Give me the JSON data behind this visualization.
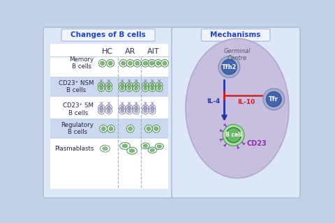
{
  "bg_color": "#c2d0e8",
  "left_panel_bg": "#dce8f8",
  "right_panel_bg": "#dce8f8",
  "left_title": "Changes of B cells",
  "right_title": "Mechanisms",
  "title_color": "#2244bb",
  "title_bg": "#f0f4ff",
  "col_headers": [
    "HC",
    "AR",
    "AIT"
  ],
  "row_labels": [
    "Memory\nB cells",
    "CD23⁺ NSM\nB cells",
    "CD23⁺ SM\nB cells",
    "Regulatory\nB cells",
    "Plasmablasts"
  ],
  "row_shading": [
    false,
    true,
    false,
    true,
    false
  ],
  "row_shade_color": "#ccd8ee",
  "cell_green_fill": "#7aba7a",
  "cell_green_outline": "#4a8a4a",
  "cell_gray_fill": "#a0a0c0",
  "cell_gray_outline": "#7070a0",
  "gc_fill": "#c8bfe0",
  "gc_edge": "#b0a8cc",
  "tfh2_outer_fill": "#a8b0cc",
  "tfh2_inner_fill": "#4466aa",
  "tfr_outer_fill": "#a8b0cc",
  "tfr_inner_fill": "#4466aa",
  "bcell_outer_fill": "#aaddaa",
  "bcell_inner_fill": "#6aba6a",
  "il4_color": "#2233aa",
  "il10_color": "#cc2222",
  "cd23_color": "#8833aa",
  "germinal_color": "#555570"
}
